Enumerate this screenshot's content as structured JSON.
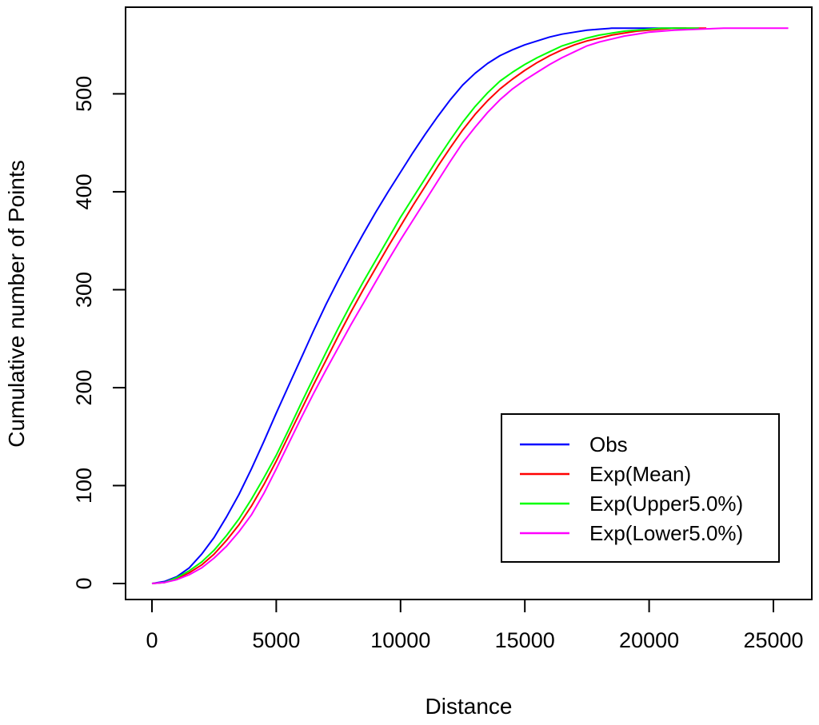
{
  "figure": {
    "background": "#ffffff",
    "border_color": "#000000"
  },
  "chart_data": {
    "type": "line",
    "title": "",
    "xlabel": "Distance",
    "ylabel": "Cumulative number of Points",
    "x_ticks": [
      0,
      5000,
      10000,
      15000,
      20000,
      25000
    ],
    "y_ticks": [
      0,
      100,
      200,
      300,
      400,
      500
    ],
    "xlim": [
      -1060,
      26500
    ],
    "ylim": [
      -18,
      589
    ],
    "grid": false,
    "plateau_value": 567,
    "legend": {
      "position": "inset bottom-right",
      "items": [
        {
          "label": "Obs",
          "color": "#0000ff"
        },
        {
          "label": "Exp(Mean)",
          "color": "#ff0000"
        },
        {
          "label": "Exp(Upper5.0%)",
          "color": "#00ff00"
        },
        {
          "label": "Exp(Lower5.0%)",
          "color": "#ff00ff"
        }
      ]
    },
    "series": [
      {
        "name": "Obs",
        "color": "#0000ff",
        "points": [
          [
            0,
            0
          ],
          [
            500,
            2
          ],
          [
            1000,
            7
          ],
          [
            1500,
            16
          ],
          [
            2000,
            30
          ],
          [
            2500,
            47
          ],
          [
            3000,
            68
          ],
          [
            3500,
            91
          ],
          [
            4000,
            117
          ],
          [
            4500,
            145
          ],
          [
            5000,
            174
          ],
          [
            5500,
            202
          ],
          [
            6000,
            230
          ],
          [
            6500,
            258
          ],
          [
            7000,
            285
          ],
          [
            7500,
            310
          ],
          [
            8000,
            334
          ],
          [
            8500,
            357
          ],
          [
            9000,
            379
          ],
          [
            9500,
            400
          ],
          [
            10000,
            420
          ],
          [
            10500,
            440
          ],
          [
            11000,
            459
          ],
          [
            11500,
            477
          ],
          [
            12000,
            494
          ],
          [
            12500,
            509
          ],
          [
            13000,
            521
          ],
          [
            13500,
            531
          ],
          [
            14000,
            539
          ],
          [
            14500,
            545
          ],
          [
            15000,
            550
          ],
          [
            15500,
            554
          ],
          [
            16000,
            558
          ],
          [
            16500,
            561
          ],
          [
            17000,
            563
          ],
          [
            17500,
            565
          ],
          [
            18000,
            566
          ],
          [
            18500,
            567
          ],
          [
            19000,
            567
          ],
          [
            21500,
            567
          ]
        ]
      },
      {
        "name": "Exp(Mean)",
        "color": "#ff0000",
        "points": [
          [
            0,
            0
          ],
          [
            500,
            1
          ],
          [
            1000,
            5
          ],
          [
            1500,
            11
          ],
          [
            2000,
            19
          ],
          [
            2500,
            30
          ],
          [
            3000,
            44
          ],
          [
            3500,
            60
          ],
          [
            4000,
            79
          ],
          [
            4500,
            101
          ],
          [
            5000,
            125
          ],
          [
            5500,
            151
          ],
          [
            6000,
            177
          ],
          [
            6500,
            203
          ],
          [
            7000,
            228
          ],
          [
            7500,
            253
          ],
          [
            8000,
            277
          ],
          [
            8500,
            300
          ],
          [
            9000,
            322
          ],
          [
            9500,
            344
          ],
          [
            10000,
            365
          ],
          [
            10500,
            386
          ],
          [
            11000,
            406
          ],
          [
            11500,
            426
          ],
          [
            12000,
            445
          ],
          [
            12500,
            463
          ],
          [
            13000,
            479
          ],
          [
            13500,
            493
          ],
          [
            14000,
            505
          ],
          [
            14500,
            515
          ],
          [
            15000,
            524
          ],
          [
            15500,
            532
          ],
          [
            16000,
            539
          ],
          [
            16500,
            545
          ],
          [
            17000,
            550
          ],
          [
            17500,
            554
          ],
          [
            18000,
            557
          ],
          [
            18500,
            560
          ],
          [
            19000,
            562
          ],
          [
            19500,
            564
          ],
          [
            20000,
            565
          ],
          [
            20500,
            566
          ],
          [
            21000,
            567
          ],
          [
            22300,
            567
          ]
        ]
      },
      {
        "name": "Exp(Upper5.0%)",
        "color": "#00ff00",
        "points": [
          [
            0,
            0
          ],
          [
            500,
            1
          ],
          [
            1000,
            6
          ],
          [
            1500,
            13
          ],
          [
            2000,
            22
          ],
          [
            2500,
            34
          ],
          [
            3000,
            49
          ],
          [
            3500,
            66
          ],
          [
            4000,
            86
          ],
          [
            4500,
            108
          ],
          [
            5000,
            131
          ],
          [
            5500,
            157
          ],
          [
            6000,
            184
          ],
          [
            6500,
            210
          ],
          [
            7000,
            236
          ],
          [
            7500,
            261
          ],
          [
            8000,
            285
          ],
          [
            8500,
            308
          ],
          [
            9000,
            330
          ],
          [
            9500,
            352
          ],
          [
            10000,
            374
          ],
          [
            10500,
            394
          ],
          [
            11000,
            414
          ],
          [
            11500,
            434
          ],
          [
            12000,
            453
          ],
          [
            12500,
            471
          ],
          [
            13000,
            487
          ],
          [
            13500,
            501
          ],
          [
            14000,
            513
          ],
          [
            14500,
            522
          ],
          [
            15000,
            530
          ],
          [
            15500,
            537
          ],
          [
            16000,
            543
          ],
          [
            16500,
            549
          ],
          [
            17000,
            553
          ],
          [
            17500,
            557
          ],
          [
            18000,
            560
          ],
          [
            18500,
            562
          ],
          [
            19000,
            564
          ],
          [
            19500,
            565
          ],
          [
            20000,
            566
          ],
          [
            20500,
            567
          ],
          [
            22000,
            567
          ]
        ]
      },
      {
        "name": "Exp(Lower5.0%)",
        "color": "#ff00ff",
        "points": [
          [
            0,
            0
          ],
          [
            500,
            1
          ],
          [
            1000,
            4
          ],
          [
            1500,
            9
          ],
          [
            2000,
            16
          ],
          [
            2500,
            26
          ],
          [
            3000,
            38
          ],
          [
            3500,
            53
          ],
          [
            4000,
            70
          ],
          [
            4500,
            92
          ],
          [
            5000,
            117
          ],
          [
            5500,
            143
          ],
          [
            6000,
            169
          ],
          [
            6500,
            194
          ],
          [
            7000,
            218
          ],
          [
            7500,
            241
          ],
          [
            8000,
            264
          ],
          [
            8500,
            286
          ],
          [
            9000,
            308
          ],
          [
            9500,
            330
          ],
          [
            10000,
            351
          ],
          [
            10500,
            371
          ],
          [
            11000,
            391
          ],
          [
            11500,
            411
          ],
          [
            12000,
            431
          ],
          [
            12500,
            450
          ],
          [
            13000,
            466
          ],
          [
            13500,
            481
          ],
          [
            14000,
            494
          ],
          [
            14500,
            505
          ],
          [
            15000,
            514
          ],
          [
            15500,
            522
          ],
          [
            16000,
            530
          ],
          [
            16500,
            537
          ],
          [
            17000,
            543
          ],
          [
            17500,
            549
          ],
          [
            18000,
            553
          ],
          [
            18500,
            556
          ],
          [
            19000,
            559
          ],
          [
            19500,
            561
          ],
          [
            20000,
            563
          ],
          [
            21000,
            565
          ],
          [
            22000,
            566
          ],
          [
            23000,
            567
          ],
          [
            25600,
            567
          ]
        ]
      }
    ]
  }
}
